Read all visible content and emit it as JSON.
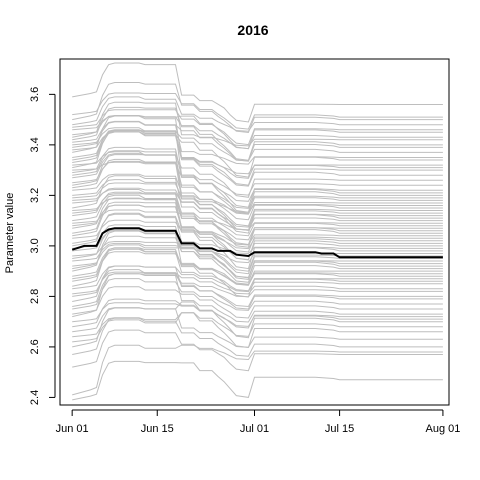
{
  "chart_data": {
    "type": "line",
    "title": "2016",
    "xlabel": "",
    "ylabel": "Parameter value",
    "xlim": [
      "2016-05-30",
      "2016-08-02"
    ],
    "ylim": [
      2.37,
      3.74
    ],
    "x_ticks": [
      {
        "label": "Jun 01",
        "date": "2016-06-01"
      },
      {
        "label": "Jun 15",
        "date": "2016-06-15"
      },
      {
        "label": "Jul 01",
        "date": "2016-07-01"
      },
      {
        "label": "Jul 15",
        "date": "2016-07-15"
      },
      {
        "label": "Aug 01",
        "date": "2016-08-01"
      }
    ],
    "y_ticks": [
      2.4,
      2.6,
      2.8,
      3.0,
      3.2,
      3.4,
      3.6
    ],
    "y_tick_labels": [
      "2.4",
      "2.6",
      "2.8",
      "3.0",
      "3.2",
      "3.4",
      "3.6"
    ],
    "grid": false,
    "legend": "none",
    "colors": {
      "ensemble": "#bebebe",
      "highlight": "#000000"
    },
    "highlight_series": {
      "x": [
        "2016-06-01",
        "2016-06-03",
        "2016-06-05",
        "2016-06-06",
        "2016-06-07",
        "2016-06-08",
        "2016-06-09",
        "2016-06-12",
        "2016-06-13",
        "2016-06-18",
        "2016-06-19",
        "2016-06-21",
        "2016-06-22",
        "2016-06-24",
        "2016-06-25",
        "2016-06-27",
        "2016-06-28",
        "2016-06-30",
        "2016-07-01",
        "2016-07-11",
        "2016-07-12",
        "2016-07-14",
        "2016-07-15",
        "2016-08-01"
      ],
      "y": [
        2.985,
        3.0,
        3.0,
        3.05,
        3.065,
        3.07,
        3.07,
        3.07,
        3.06,
        3.06,
        3.01,
        3.01,
        2.99,
        2.99,
        2.98,
        2.98,
        2.965,
        2.96,
        2.975,
        2.975,
        2.97,
        2.97,
        2.955,
        2.955
      ]
    },
    "ensemble": {
      "count": 74,
      "x": [
        "2016-06-01",
        "2016-06-04",
        "2016-06-05",
        "2016-06-06",
        "2016-06-07",
        "2016-06-08",
        "2016-06-12",
        "2016-06-13",
        "2016-06-18",
        "2016-06-19",
        "2016-06-21",
        "2016-06-22",
        "2016-06-24",
        "2016-06-25",
        "2016-06-26",
        "2016-06-27",
        "2016-06-28",
        "2016-06-30",
        "2016-07-01",
        "2016-07-11",
        "2016-07-14",
        "2016-07-15",
        "2016-08-01"
      ],
      "end_values": [
        2.47,
        2.57,
        2.6,
        2.63,
        2.66,
        2.68,
        2.7,
        2.71,
        2.72,
        2.73,
        2.75,
        2.77,
        2.79,
        2.8,
        2.82,
        2.83,
        2.85,
        2.86,
        2.87,
        2.88,
        2.89,
        2.9,
        2.91,
        2.92,
        2.93,
        2.94,
        2.95,
        2.96,
        2.97,
        2.98,
        2.99,
        3.0,
        3.01,
        3.02,
        3.03,
        3.04,
        3.05,
        3.06,
        3.07,
        3.08,
        3.09,
        3.1,
        3.11,
        3.12,
        3.13,
        3.14,
        3.15,
        3.16,
        3.17,
        3.18,
        3.19,
        3.2,
        3.21,
        3.22,
        3.24,
        3.26,
        3.28,
        3.3,
        3.31,
        3.32,
        3.34,
        3.35,
        3.37,
        3.39,
        3.4,
        3.42,
        3.43,
        3.45,
        3.46,
        3.48,
        3.5,
        3.51,
        3.56,
        2.58
      ],
      "start_values": [
        2.39,
        2.52,
        2.57,
        2.6,
        2.62,
        2.64,
        2.66,
        2.68,
        2.7,
        2.72,
        2.73,
        2.75,
        2.76,
        2.78,
        2.8,
        2.81,
        2.83,
        2.84,
        2.86,
        2.87,
        2.88,
        2.9,
        2.91,
        2.92,
        2.94,
        2.95,
        2.96,
        2.98,
        2.99,
        3.0,
        3.01,
        3.03,
        3.04,
        3.05,
        3.07,
        3.08,
        3.09,
        3.1,
        3.12,
        3.13,
        3.14,
        3.15,
        3.17,
        3.18,
        3.19,
        3.2,
        3.22,
        3.23,
        3.24,
        3.25,
        3.27,
        3.28,
        3.29,
        3.3,
        3.31,
        3.32,
        3.33,
        3.34,
        3.35,
        3.37,
        3.38,
        3.39,
        3.4,
        3.41,
        3.42,
        3.43,
        3.44,
        3.46,
        3.47,
        3.48,
        3.5,
        3.52,
        3.59,
        2.41
      ]
    }
  }
}
